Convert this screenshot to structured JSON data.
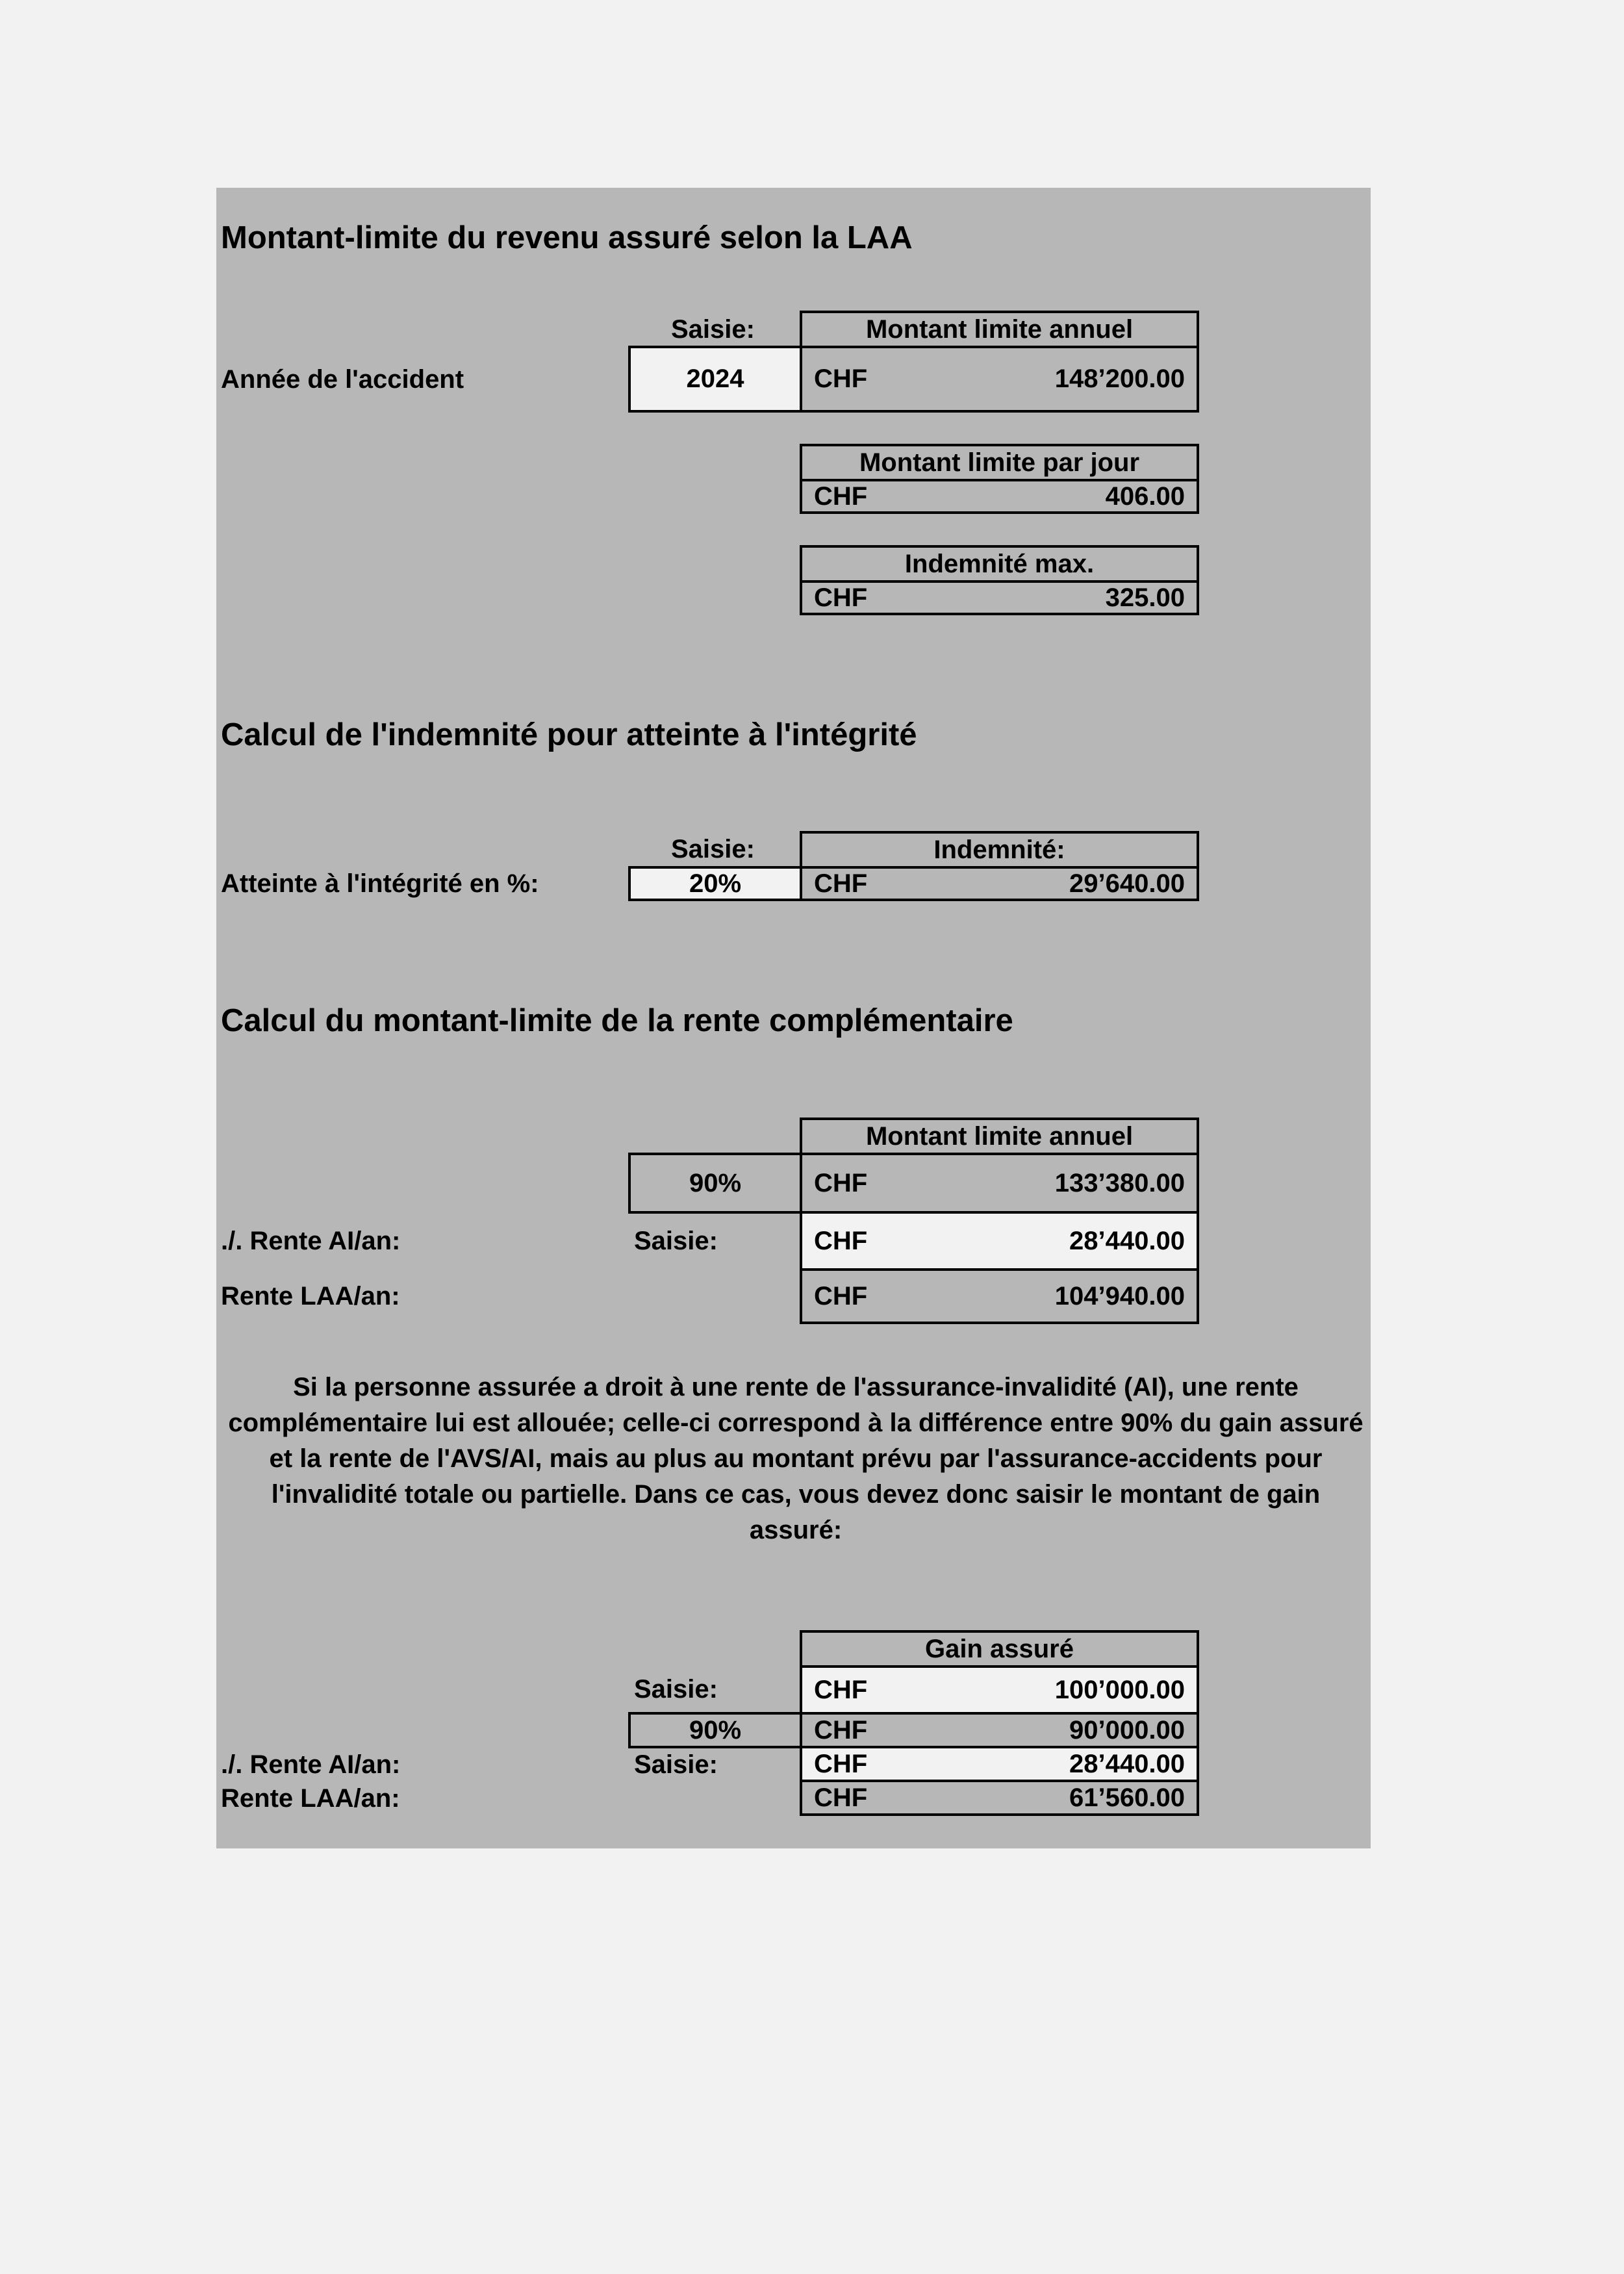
{
  "section1": {
    "title": "Montant-limite du revenu assuré selon la LAA",
    "saisie_label": "Saisie:",
    "year_label": "Année de l'accident",
    "year_input": "2024",
    "annual": {
      "header": "Montant limite annuel",
      "currency": "CHF",
      "value": "148’200.00"
    },
    "daily": {
      "header": "Montant limite par jour",
      "currency": "CHF",
      "value": "406.00"
    },
    "max": {
      "header": "Indemnité max.",
      "currency": "CHF",
      "value": "325.00"
    }
  },
  "section2": {
    "title": "Calcul de l'indemnité pour atteinte à l'intégrité",
    "saisie_label": "Saisie:",
    "pct_label": "Atteinte à l'intégrité en %:",
    "pct_input": "20%",
    "indemnity": {
      "header": "Indemnité:",
      "currency": "CHF",
      "value": "29’640.00"
    }
  },
  "section3": {
    "title": "Calcul du montant-limite de la rente complémentaire",
    "header": "Montant limite annuel",
    "pct": "90%",
    "row1": {
      "currency": "CHF",
      "value": "133’380.00"
    },
    "ai_label": "./. Rente AI/an:",
    "saisie_label": "Saisie:",
    "row2": {
      "currency": "CHF",
      "value": "28’440.00"
    },
    "laa_label": "Rente LAA/an:",
    "row3": {
      "currency": "CHF",
      "value": "104’940.00"
    },
    "paragraph": "Si la personne assurée a droit à une rente de l'assurance-invalidité (AI), une rente complémentaire lui est allouée; celle-ci correspond à la différence entre 90% du gain assuré et la rente de l'AVS/AI, mais au plus au montant prévu par l'assurance-accidents pour l'invalidité totale ou partielle. Dans ce cas, vous devez donc saisir le montant de gain assuré:"
  },
  "section4": {
    "header": "Gain assuré",
    "saisie_label1": "Saisie:",
    "row1": {
      "currency": "CHF",
      "value": "100’000.00"
    },
    "pct": "90%",
    "row2": {
      "currency": "CHF",
      "value": "90’000.00"
    },
    "ai_label": "./. Rente AI/an:",
    "saisie_label2": "Saisie:",
    "row3": {
      "currency": "CHF",
      "value": "28’440.00"
    },
    "laa_label": "Rente LAA/an:",
    "row4": {
      "currency": "CHF",
      "value": "61’560.00"
    }
  }
}
